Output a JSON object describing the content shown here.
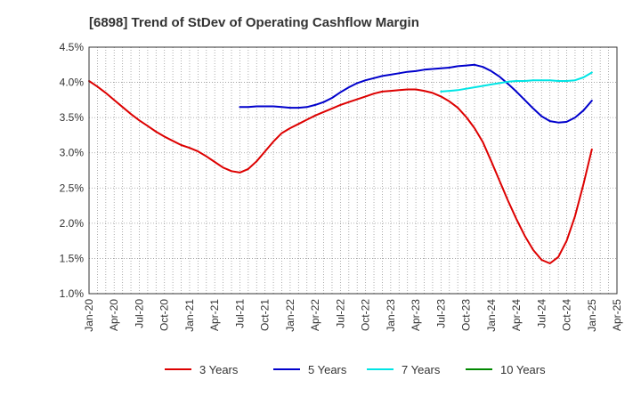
{
  "chart_data": {
    "type": "line",
    "title": "[6898]  Trend of StDev of Operating Cashflow Margin",
    "xlabel": "",
    "ylabel": "",
    "y_tick_labels": [
      "1.0%",
      "1.5%",
      "2.0%",
      "2.5%",
      "3.0%",
      "3.5%",
      "4.0%",
      "4.5%"
    ],
    "y_ticks": [
      1.0,
      1.5,
      2.0,
      2.5,
      3.0,
      3.5,
      4.0,
      4.5
    ],
    "ylim": [
      1.0,
      4.5
    ],
    "x_tick_labels": [
      "Jan-20",
      "Apr-20",
      "Jul-20",
      "Oct-20",
      "Jan-21",
      "Apr-21",
      "Jul-21",
      "Oct-21",
      "Jan-22",
      "Apr-22",
      "Jul-22",
      "Oct-22",
      "Jan-23",
      "Apr-23",
      "Jul-23",
      "Oct-23",
      "Jan-24",
      "Apr-24",
      "Jul-24",
      "Oct-24",
      "Jan-25",
      "Apr-25"
    ],
    "x_range": [
      "Jan-20",
      "Apr-25"
    ],
    "grid": true,
    "legend_position": "bottom",
    "series": [
      {
        "name": "3 Years",
        "color": "#dd0000",
        "x": [
          "Jan-20",
          "Feb-20",
          "Mar-20",
          "Apr-20",
          "May-20",
          "Jun-20",
          "Jul-20",
          "Aug-20",
          "Sep-20",
          "Oct-20",
          "Nov-20",
          "Dec-20",
          "Jan-21",
          "Feb-21",
          "Mar-21",
          "Apr-21",
          "May-21",
          "Jun-21",
          "Jul-21",
          "Aug-21",
          "Sep-21",
          "Oct-21",
          "Nov-21",
          "Dec-21",
          "Jan-22",
          "Feb-22",
          "Mar-22",
          "Apr-22",
          "May-22",
          "Jun-22",
          "Jul-22",
          "Aug-22",
          "Sep-22",
          "Oct-22",
          "Nov-22",
          "Dec-22",
          "Jan-23",
          "Feb-23",
          "Mar-23",
          "Apr-23",
          "May-23",
          "Jun-23",
          "Jul-23",
          "Aug-23",
          "Sep-23",
          "Oct-23",
          "Nov-23",
          "Dec-23",
          "Jan-24",
          "Feb-24",
          "Mar-24",
          "Apr-24",
          "May-24",
          "Jun-24",
          "Jul-24",
          "Aug-24",
          "Sep-24",
          "Oct-24",
          "Nov-24",
          "Dec-24",
          "Jan-25"
        ],
        "values": [
          4.02,
          3.94,
          3.85,
          3.75,
          3.65,
          3.55,
          3.46,
          3.38,
          3.3,
          3.23,
          3.17,
          3.11,
          3.07,
          3.02,
          2.95,
          2.87,
          2.79,
          2.74,
          2.72,
          2.77,
          2.88,
          3.02,
          3.16,
          3.28,
          3.35,
          3.41,
          3.47,
          3.53,
          3.58,
          3.63,
          3.68,
          3.72,
          3.76,
          3.8,
          3.84,
          3.87,
          3.88,
          3.89,
          3.9,
          3.9,
          3.88,
          3.85,
          3.8,
          3.73,
          3.64,
          3.51,
          3.35,
          3.15,
          2.88,
          2.6,
          2.32,
          2.06,
          1.82,
          1.62,
          1.48,
          1.43,
          1.52,
          1.75,
          2.1,
          2.55,
          3.05
        ]
      },
      {
        "name": "5 Years",
        "color": "#0000cc",
        "x": [
          "Jul-21",
          "Aug-21",
          "Sep-21",
          "Oct-21",
          "Nov-21",
          "Dec-21",
          "Jan-22",
          "Feb-22",
          "Mar-22",
          "Apr-22",
          "May-22",
          "Jun-22",
          "Jul-22",
          "Aug-22",
          "Sep-22",
          "Oct-22",
          "Nov-22",
          "Dec-22",
          "Jan-23",
          "Feb-23",
          "Mar-23",
          "Apr-23",
          "May-23",
          "Jun-23",
          "Jul-23",
          "Aug-23",
          "Sep-23",
          "Oct-23",
          "Nov-23",
          "Dec-23",
          "Jan-24",
          "Feb-24",
          "Mar-24",
          "Apr-24",
          "May-24",
          "Jun-24",
          "Jul-24",
          "Aug-24",
          "Sep-24",
          "Oct-24",
          "Nov-24",
          "Dec-24",
          "Jan-25"
        ],
        "values": [
          3.65,
          3.65,
          3.66,
          3.66,
          3.66,
          3.65,
          3.64,
          3.64,
          3.65,
          3.68,
          3.72,
          3.78,
          3.86,
          3.93,
          3.99,
          4.03,
          4.06,
          4.09,
          4.11,
          4.13,
          4.15,
          4.16,
          4.18,
          4.19,
          4.2,
          4.21,
          4.23,
          4.24,
          4.25,
          4.22,
          4.16,
          4.08,
          3.98,
          3.87,
          3.75,
          3.63,
          3.52,
          3.45,
          3.43,
          3.44,
          3.5,
          3.6,
          3.74
        ]
      },
      {
        "name": "7 Years",
        "color": "#00e5e5",
        "x": [
          "Jul-23",
          "Aug-23",
          "Sep-23",
          "Oct-23",
          "Nov-23",
          "Dec-23",
          "Jan-24",
          "Feb-24",
          "Mar-24",
          "Apr-24",
          "May-24",
          "Jun-24",
          "Jul-24",
          "Aug-24",
          "Sep-24",
          "Oct-24",
          "Nov-24",
          "Dec-24",
          "Jan-25"
        ],
        "values": [
          3.87,
          3.88,
          3.89,
          3.91,
          3.93,
          3.95,
          3.97,
          3.99,
          4.01,
          4.02,
          4.02,
          4.03,
          4.03,
          4.03,
          4.02,
          4.02,
          4.03,
          4.07,
          4.14
        ]
      },
      {
        "name": "10 Years",
        "color": "#008800",
        "x": [],
        "values": []
      }
    ]
  }
}
